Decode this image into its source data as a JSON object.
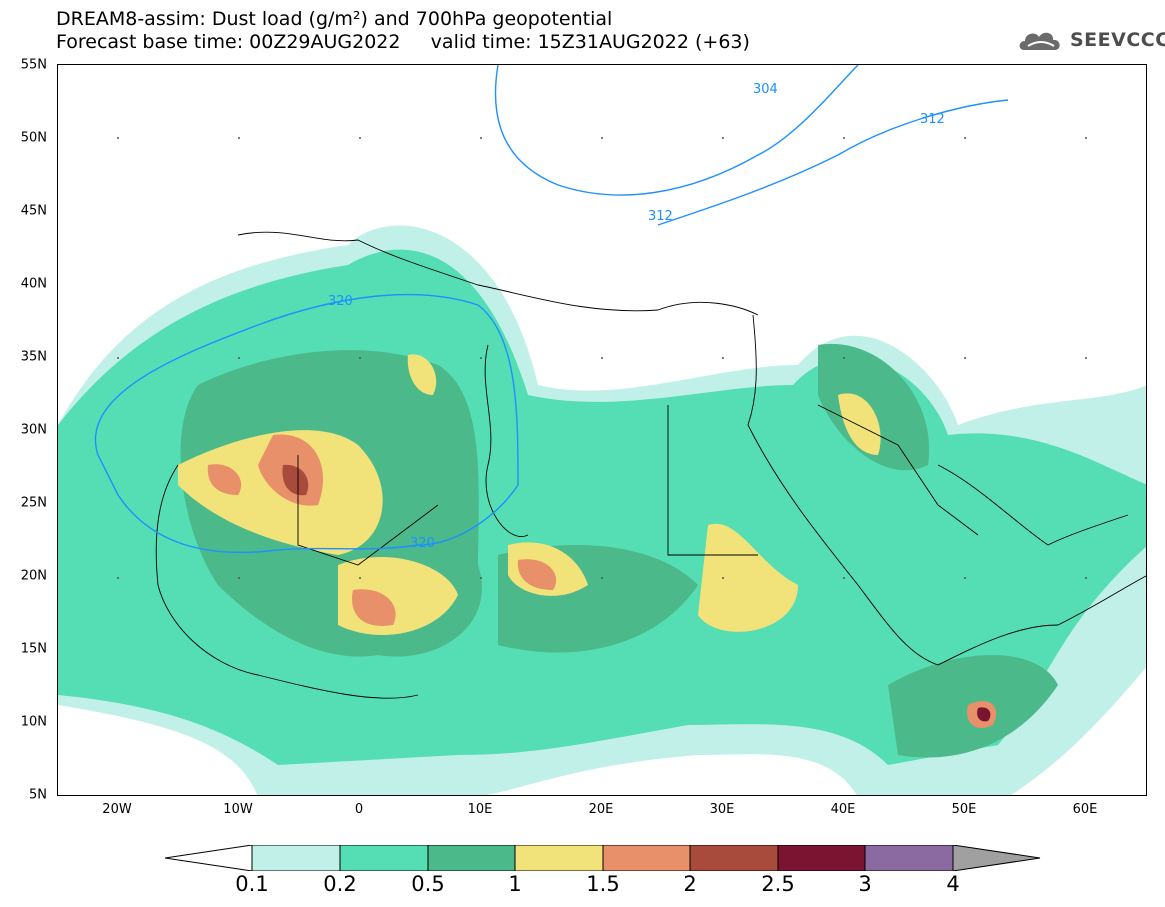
{
  "title": {
    "line1": "DREAM8-assim: Dust load (g/m²) and 700hPa geopotential",
    "line2": "Forecast base time: 00Z29AUG2022     valid time: 15Z31AUG2022 (+63)"
  },
  "logo": {
    "text": "SEEVCCC",
    "icon": "cloud-logo-icon"
  },
  "map": {
    "lat_labels": [
      "55N",
      "50N",
      "45N",
      "40N",
      "35N",
      "30N",
      "25N",
      "20N",
      "15N",
      "10N",
      "5N"
    ],
    "lon_labels": [
      "20W",
      "10W",
      "0",
      "10E",
      "20E",
      "30E",
      "40E",
      "50E",
      "60E"
    ],
    "lat_range": [
      5,
      55
    ],
    "lon_range": [
      -25,
      65
    ],
    "contour_labels": [
      "304",
      "312",
      "312",
      "320",
      "320"
    ],
    "contour_color": "#1e90ff",
    "border_color": "#000000"
  },
  "colorbar": {
    "ticks": [
      "0.1",
      "0.2",
      "0.5",
      "1",
      "1.5",
      "2",
      "2.5",
      "3",
      "4"
    ],
    "colors": [
      "#c0f0e8",
      "#55ddb4",
      "#4cb98a",
      "#f2e27a",
      "#e8906a",
      "#a84a3c",
      "#7a1430",
      "#8a6aa0",
      "#a0a0a0"
    ],
    "low_color": "#ffffff"
  }
}
